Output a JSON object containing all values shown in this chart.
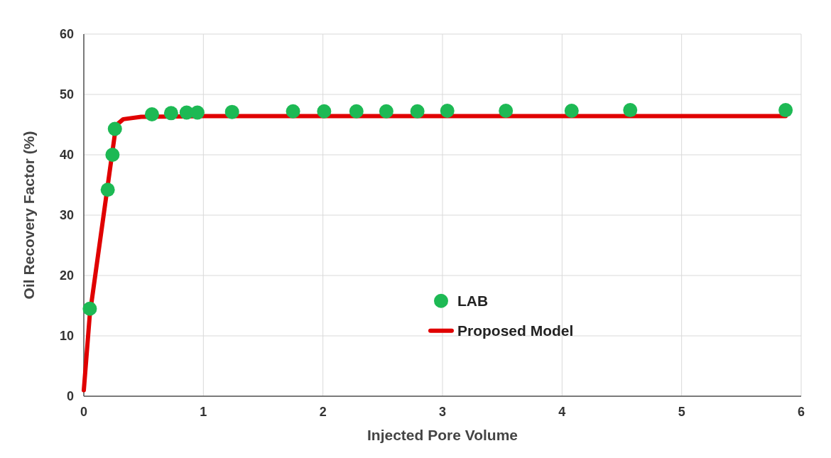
{
  "chart_data": {
    "type": "scatter",
    "xlabel": "Injected Pore Volume",
    "ylabel": "Oil Recovery Factor (%)",
    "xlim": [
      0,
      6
    ],
    "xticks": [
      0,
      1,
      2,
      3,
      4,
      5,
      6
    ],
    "ylim": [
      0,
      60
    ],
    "yticks": [
      0,
      10,
      20,
      30,
      40,
      50,
      60
    ],
    "grid": true,
    "legend": "right",
    "series": [
      {
        "name": "LAB",
        "color": "#1db954",
        "marker": "circle",
        "x": [
          0.05,
          0.2,
          0.24,
          0.26,
          0.57,
          0.73,
          0.86,
          0.95,
          1.24,
          1.75,
          2.01,
          2.28,
          2.53,
          2.79,
          3.04,
          3.53,
          4.08,
          4.57,
          5.87
        ],
        "values": [
          14.5,
          34.2,
          40,
          44.3,
          46.7,
          46.9,
          47,
          47,
          47.1,
          47.2,
          47.2,
          47.2,
          47.2,
          47.2,
          47.3,
          47.3,
          47.3,
          47.4,
          47.4
        ]
      },
      {
        "name": "Proposed Model",
        "type": "line",
        "color": "#e00000",
        "x": [
          0,
          0.05,
          0.27,
          0.33,
          0.48,
          1,
          2,
          3,
          4,
          5,
          5.87
        ],
        "values": [
          1,
          13.5,
          44.9,
          45.9,
          46.3,
          46.4,
          46.4,
          46.4,
          46.4,
          46.4,
          46.4
        ]
      }
    ]
  }
}
